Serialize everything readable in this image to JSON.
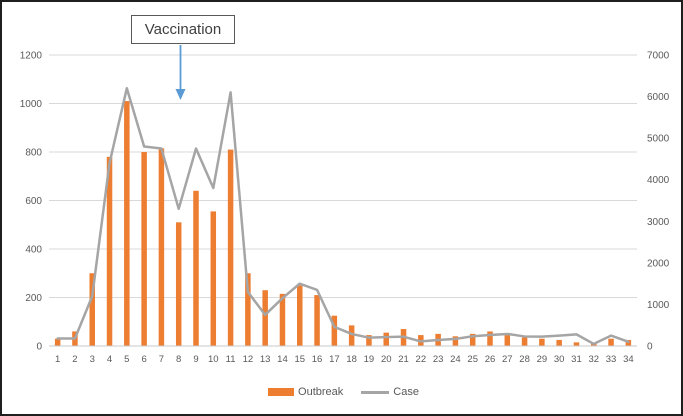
{
  "chart_data": {
    "type": "combo-bar-line",
    "categories": [
      "1",
      "2",
      "3",
      "4",
      "5",
      "6",
      "7",
      "8",
      "9",
      "10",
      "11",
      "12",
      "13",
      "14",
      "15",
      "16",
      "17",
      "18",
      "19",
      "20",
      "21",
      "22",
      "23",
      "24",
      "25",
      "26",
      "27",
      "28",
      "29",
      "30",
      "31",
      "32",
      "33",
      "34"
    ],
    "series": [
      {
        "name": "Outbreak",
        "type": "bar",
        "axis": "left",
        "color": "#ED7D31",
        "values": [
          30,
          60,
          300,
          780,
          1010,
          800,
          815,
          510,
          640,
          555,
          810,
          300,
          230,
          215,
          250,
          210,
          125,
          85,
          45,
          55,
          70,
          45,
          50,
          40,
          50,
          60,
          45,
          35,
          30,
          25,
          15,
          12,
          30,
          25
        ]
      },
      {
        "name": "Case",
        "type": "line",
        "axis": "right",
        "color": "#A5A5A5",
        "values": [
          180,
          180,
          1200,
          4400,
          6200,
          4800,
          4750,
          3300,
          4750,
          3800,
          6100,
          1300,
          750,
          1150,
          1500,
          1350,
          460,
          290,
          200,
          215,
          225,
          110,
          145,
          170,
          235,
          265,
          290,
          230,
          225,
          250,
          280,
          50,
          250,
          100
        ]
      }
    ],
    "left_axis": {
      "min": 0,
      "max": 1200,
      "step": 200,
      "ticks": [
        0,
        200,
        400,
        600,
        800,
        1000,
        1200
      ]
    },
    "right_axis": {
      "min": 0,
      "max": 7000,
      "step": 1000,
      "ticks": [
        0,
        1000,
        2000,
        3000,
        4000,
        5000,
        6000,
        7000
      ]
    },
    "grid": true,
    "legend_position": "bottom",
    "annotation": {
      "label": "Vaccination",
      "target_category": "8"
    }
  },
  "legend": {
    "outbreak_label": "Outbreak",
    "case_label": "Case"
  },
  "annotation": {
    "label": "Vaccination"
  },
  "colors": {
    "bar": "#ED7D31",
    "line": "#A5A5A5",
    "arrow": "#5B9BD5",
    "axis_text": "#595959",
    "gridline": "#D9D9D9",
    "axis_line": "#C9C9C9",
    "annotation_border": "#595959",
    "annotation_text": "#404040"
  }
}
